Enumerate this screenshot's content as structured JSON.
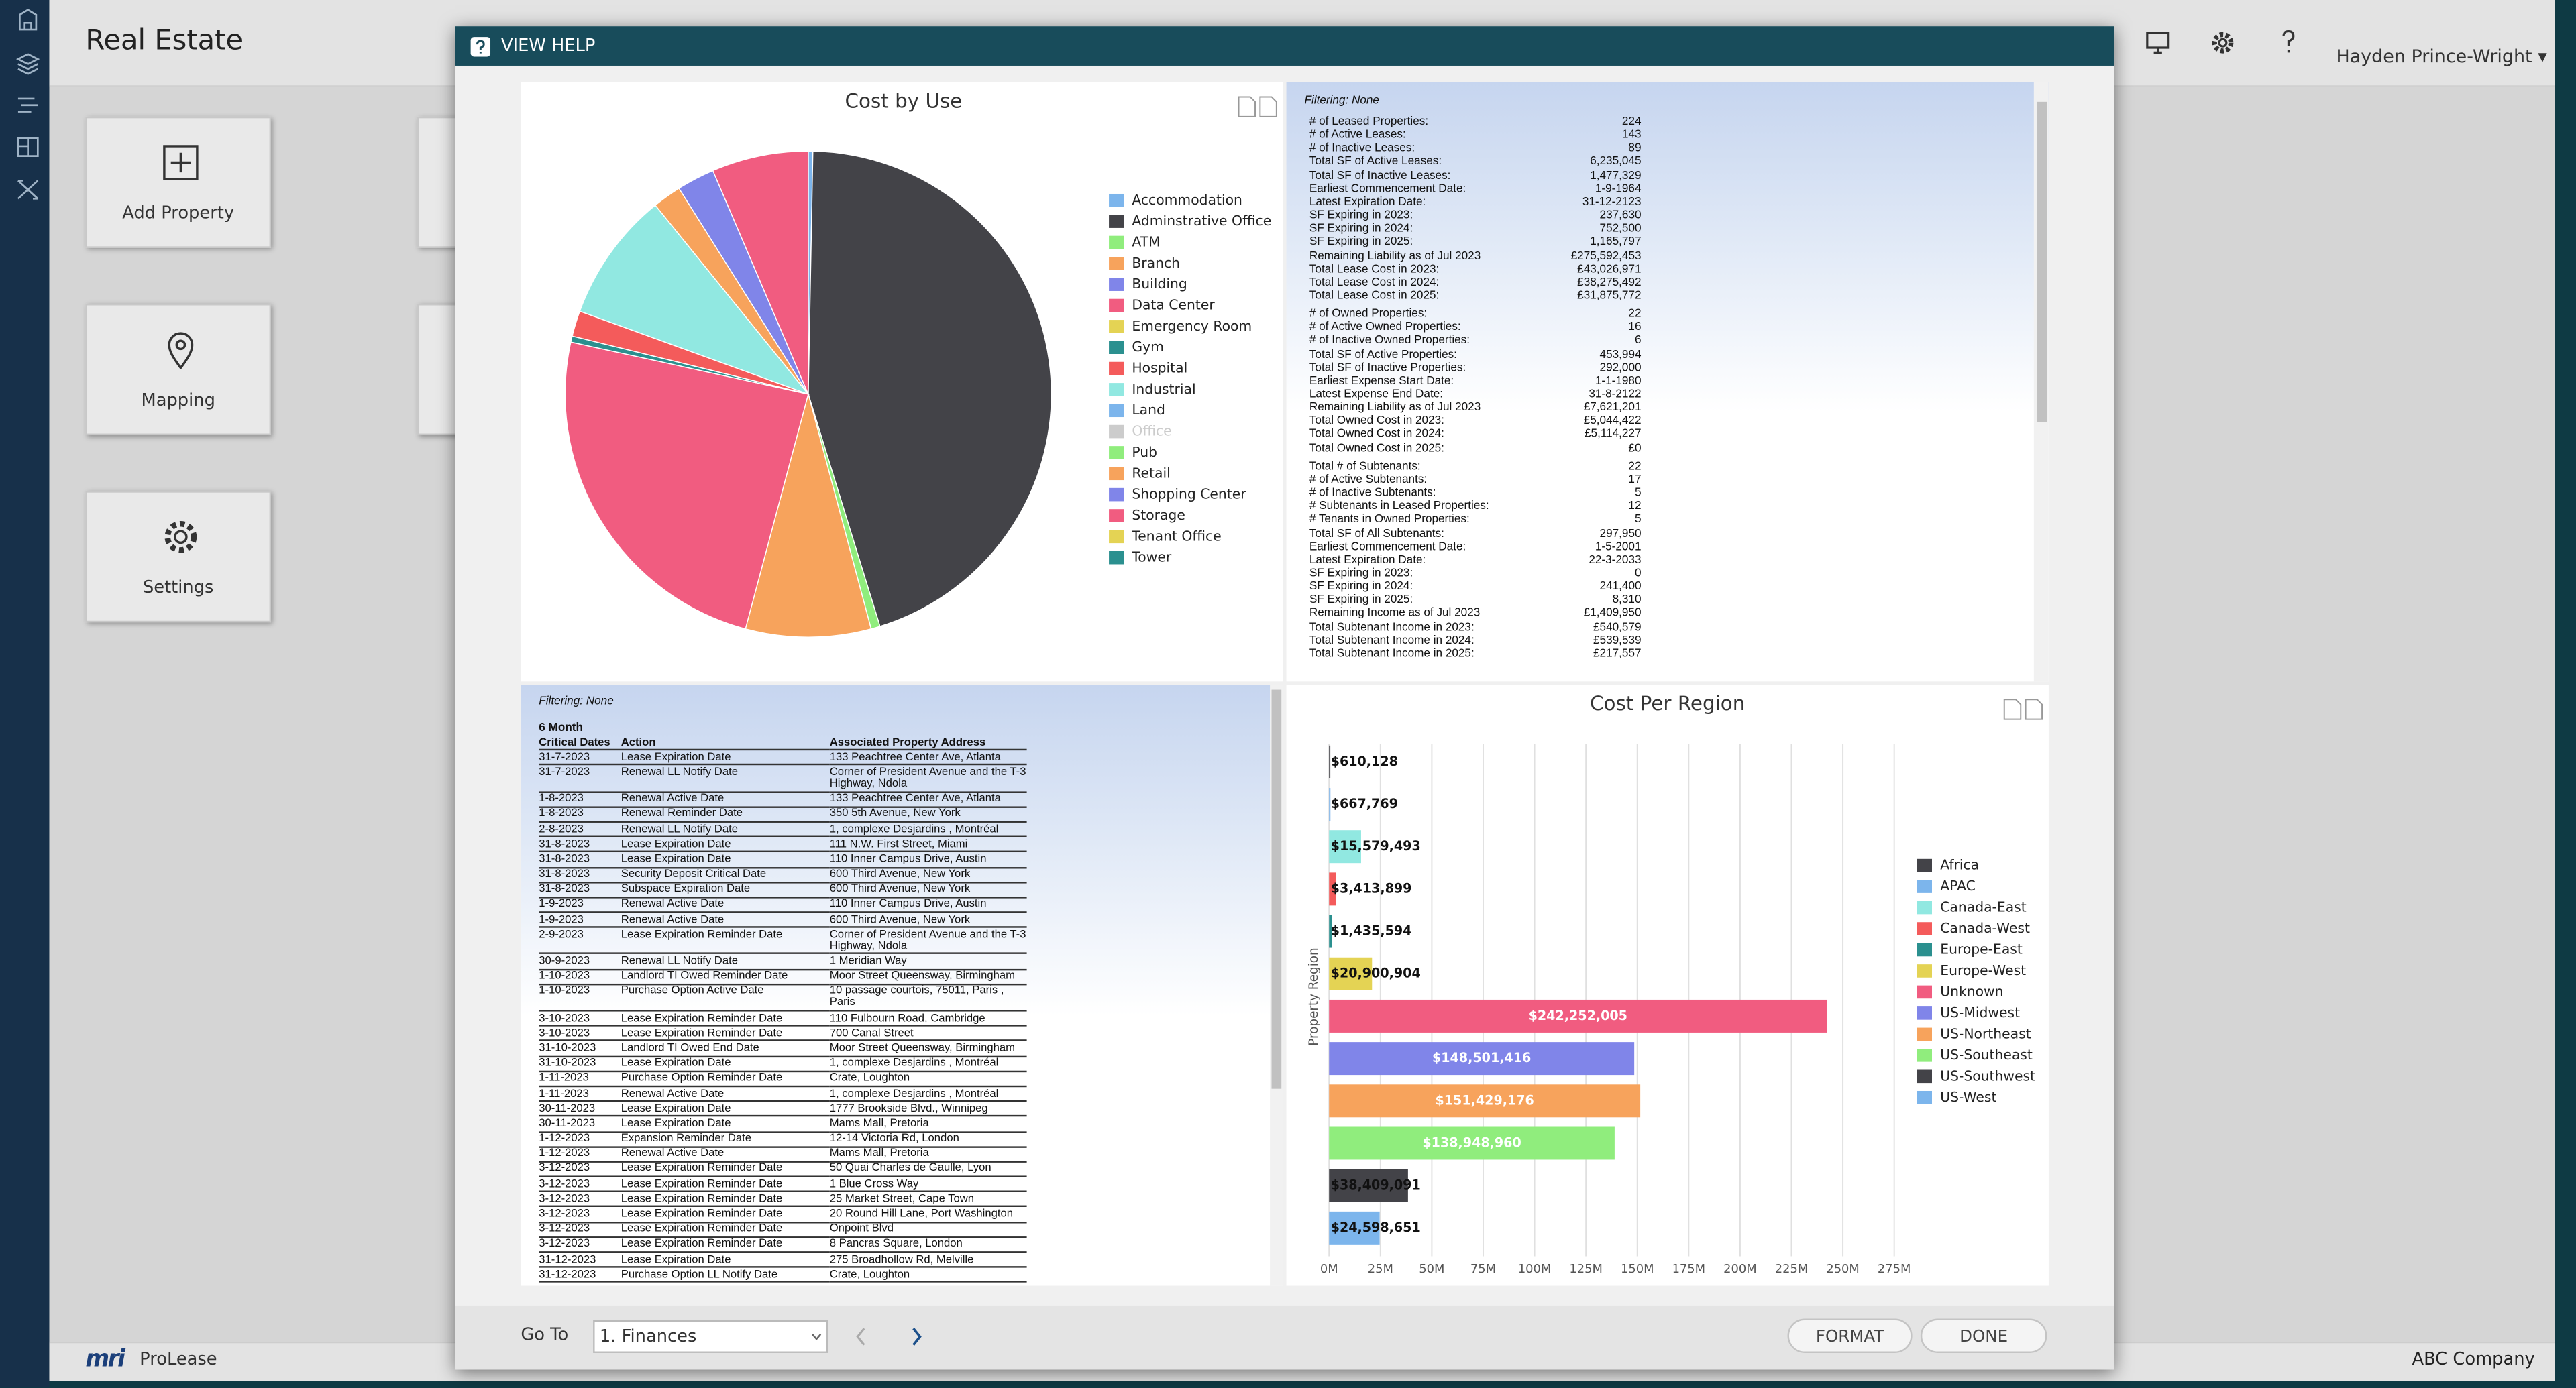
{
  "app": {
    "title": "Real Estate",
    "user": "Hayden Prince-Wright",
    "tiles": [
      "Add Property",
      "Mapping",
      "Settings"
    ],
    "logo": "mri",
    "product": "ProLease",
    "company": "ABC Company"
  },
  "modal": {
    "title": "VIEW HELP",
    "goto_label": "Go To",
    "goto_value": "1. Finances",
    "buttons": [
      "FORMAT",
      "DONE"
    ]
  },
  "summary": {
    "filtering": "Filtering: None",
    "groups": [
      [
        [
          "# of Leased Properties:",
          "224"
        ],
        [
          "# of Active Leases:",
          "143"
        ],
        [
          "# of Inactive Leases:",
          "89"
        ],
        [
          "Total SF of Active Leases:",
          "6,235,045"
        ],
        [
          "Total SF of Inactive Leases:",
          "1,477,329"
        ],
        [
          "Earliest Commencement Date:",
          "1-9-1964"
        ],
        [
          "Latest Expiration Date:",
          "31-12-2123"
        ],
        [
          "SF Expiring in 2023:",
          "237,630"
        ],
        [
          "SF Expiring in 2024:",
          "752,500"
        ],
        [
          "SF Expiring in 2025:",
          "1,165,797"
        ],
        [
          "Remaining Liability as of Jul 2023",
          "£275,592,453"
        ],
        [
          "Total Lease Cost in 2023:",
          "£43,026,971"
        ],
        [
          "Total Lease Cost in 2024:",
          "£38,275,492"
        ],
        [
          "Total Lease Cost in 2025:",
          "£31,875,772"
        ]
      ],
      [
        [
          "# of Owned Properties:",
          "22"
        ],
        [
          "# of Active Owned Properties:",
          "16"
        ],
        [
          "# of Inactive Owned Properties:",
          "6"
        ],
        [
          "Total SF of Active Properties:",
          "453,994"
        ],
        [
          "Total SF of Inactive Properties:",
          "292,000"
        ],
        [
          "Earliest Expense Start Date:",
          "1-1-1980"
        ],
        [
          "Latest Expense End Date:",
          "31-8-2122"
        ],
        [
          "Remaining Liability as of Jul 2023",
          "£7,621,201"
        ],
        [
          "Total Owned Cost in 2023:",
          "£5,044,422"
        ],
        [
          "Total Owned Cost in 2024:",
          "£5,114,227"
        ],
        [
          "Total Owned Cost in 2025:",
          "£0"
        ]
      ],
      [
        [
          "Total # of Subtenants:",
          "22"
        ],
        [
          "# of Active Subtenants:",
          "17"
        ],
        [
          "# of Inactive Subtenants:",
          "5"
        ],
        [
          "# Subtenants in Leased Properties:",
          "12"
        ],
        [
          "# Tenants in Owned Properties:",
          "5"
        ],
        [
          "Total SF of All Subtenants:",
          "297,950"
        ],
        [
          "Earliest Commencement Date:",
          "1-5-2001"
        ],
        [
          "Latest Expiration Date:",
          "22-3-2033"
        ],
        [
          "SF Expiring in 2023:",
          "0"
        ],
        [
          "SF Expiring in 2024:",
          "241,400"
        ],
        [
          "SF Expiring in 2025:",
          "8,310"
        ],
        [
          "Remaining Income as of Jul 2023",
          "£1,409,950"
        ],
        [
          "Total Subtenant Income in 2023:",
          "£540,579"
        ],
        [
          "Total Subtenant Income in 2024:",
          "£539,539"
        ],
        [
          "Total Subtenant Income in 2025:",
          "£217,557"
        ]
      ]
    ]
  },
  "critical_dates": {
    "filtering": "Filtering: None",
    "caption": "6 Month",
    "columns": [
      "Critical Dates",
      "Action",
      "Associated Property Address"
    ],
    "rows": [
      [
        "31-7-2023",
        "Lease Expiration Date",
        "133 Peachtree Center Ave, Atlanta"
      ],
      [
        "31-7-2023",
        "Renewal LL Notify Date",
        "Corner of President Avenue and the T-3 Highway, Ndola"
      ],
      [
        "1-8-2023",
        "Renewal Active Date",
        "133 Peachtree Center Ave, Atlanta"
      ],
      [
        "1-8-2023",
        "Renewal Reminder Date",
        "350 5th Avenue, New York"
      ],
      [
        "2-8-2023",
        "Renewal LL Notify Date",
        "1, complexe Desjardins , Montréal"
      ],
      [
        "31-8-2023",
        "Lease Expiration Date",
        "111 N.W. First Street, Miami"
      ],
      [
        "31-8-2023",
        "Lease Expiration Date",
        "110 Inner Campus Drive, Austin"
      ],
      [
        "31-8-2023",
        "Security Deposit Critical Date",
        "600 Third Avenue, New York"
      ],
      [
        "31-8-2023",
        "Subspace Expiration Date",
        "600 Third Avenue, New York"
      ],
      [
        "1-9-2023",
        "Renewal Active Date",
        "110 Inner Campus Drive, Austin"
      ],
      [
        "1-9-2023",
        "Renewal Active Date",
        "600 Third Avenue, New York"
      ],
      [
        "2-9-2023",
        "Lease Expiration Reminder Date",
        "Corner of President Avenue and the T-3 Highway, Ndola"
      ],
      [
        "30-9-2023",
        "Renewal LL Notify Date",
        "1 Meridian Way"
      ],
      [
        "1-10-2023",
        "Landlord TI Owed Reminder Date",
        "Moor Street Queensway, Birmingham"
      ],
      [
        "1-10-2023",
        "Purchase Option Active Date",
        "10 passage courtois, 75011, Paris , Paris"
      ],
      [
        "3-10-2023",
        "Lease Expiration Reminder Date",
        "110 Fulbourn Road, Cambridge"
      ],
      [
        "3-10-2023",
        "Lease Expiration Reminder Date",
        "700 Canal Street"
      ],
      [
        "31-10-2023",
        "Landlord TI Owed End Date",
        "Moor Street Queensway, Birmingham"
      ],
      [
        "31-10-2023",
        "Lease Expiration Date",
        "1, complexe Desjardins , Montréal"
      ],
      [
        "1-11-2023",
        "Purchase Option Reminder Date",
        "Crate, Loughton"
      ],
      [
        "1-11-2023",
        "Renewal Active Date",
        "1, complexe Desjardins , Montréal"
      ],
      [
        "30-11-2023",
        "Lease Expiration Date",
        "1777 Brookside Blvd., Winnipeg"
      ],
      [
        "30-11-2023",
        "Lease Expiration Date",
        "Mams Mall, Pretoria"
      ],
      [
        "1-12-2023",
        "Expansion Reminder Date",
        "12-14 Victoria Rd, London"
      ],
      [
        "1-12-2023",
        "Renewal Active Date",
        "Mams Mall, Pretoria"
      ],
      [
        "3-12-2023",
        "Lease Expiration Reminder Date",
        "50 Quai Charles de Gaulle, Lyon"
      ],
      [
        "3-12-2023",
        "Lease Expiration Reminder Date",
        "1 Blue Cross Way"
      ],
      [
        "3-12-2023",
        "Lease Expiration Reminder Date",
        "25 Market Street, Cape Town"
      ],
      [
        "3-12-2023",
        "Lease Expiration Reminder Date",
        "20 Round Hill Lane, Port Washington"
      ],
      [
        "3-12-2023",
        "Lease Expiration Reminder Date",
        "Onpoint Blvd"
      ],
      [
        "3-12-2023",
        "Lease Expiration Reminder Date",
        "8 Pancras Square, London"
      ],
      [
        "31-12-2023",
        "Lease Expiration Date",
        "275 Broadhollow Rd, Melville"
      ],
      [
        "31-12-2023",
        "Purchase Option LL Notify Date",
        "Crate, Loughton"
      ]
    ]
  },
  "chart_data": [
    {
      "type": "pie",
      "title": "Cost by Use",
      "categories": [
        "Accommodation",
        "Adminstrative Office",
        "ATM",
        "Branch",
        "Building",
        "Data Center",
        "Emergency Room",
        "Gym",
        "Hospital",
        "Industrial",
        "Land",
        "Office",
        "Pub",
        "Retail",
        "Shopping Center",
        "Storage",
        "Tenant Office",
        "Tower"
      ],
      "values": [
        0.3,
        44.8,
        0.6,
        8.3,
        0,
        24.2,
        0,
        0.4,
        1.7,
        8.6,
        0,
        null,
        0,
        1.9,
        2.5,
        6.4,
        0,
        0
      ],
      "colors": [
        "#7cb5ec",
        "#434348",
        "#90ed7d",
        "#f7a35c",
        "#8085e9",
        "#f15c80",
        "#e4d354",
        "#2b908f",
        "#f45b5b",
        "#91e8e1",
        "#7cb5ec",
        "#434348",
        "#90ed7d",
        "#f7a35c",
        "#8085e9",
        "#f15c80",
        "#e4d354",
        "#2b908f"
      ],
      "legend": "right"
    },
    {
      "type": "bar",
      "orientation": "horizontal",
      "title": "Cost Per Region",
      "ylabel": "Property Region",
      "series": [
        {
          "name": "Africa",
          "color": "#434348",
          "values": [
            610128
          ],
          "value_labels": [
            "$610,128"
          ]
        },
        {
          "name": "APAC",
          "color": "#7cb5ec",
          "values": [
            667769
          ],
          "value_labels": [
            "$667,769"
          ]
        },
        {
          "name": "Canada-East",
          "color": "#91e8e1",
          "values": [
            15579493
          ],
          "value_labels": [
            "$15,579,493"
          ]
        },
        {
          "name": "Canada-West",
          "color": "#f45b5b",
          "values": [
            3413899
          ],
          "value_labels": [
            "$3,413,899"
          ]
        },
        {
          "name": "Europe-East",
          "color": "#2b908f",
          "values": [
            1435594
          ],
          "value_labels": [
            "$1,435,594"
          ]
        },
        {
          "name": "Europe-West",
          "color": "#e4d354",
          "values": [
            20900904
          ],
          "value_labels": [
            "$20,900,904"
          ]
        },
        {
          "name": "Unknown",
          "color": "#f15c80",
          "values": [
            242252005
          ],
          "value_labels": [
            "$242,252,005"
          ]
        },
        {
          "name": "US-Midwest",
          "color": "#8085e9",
          "values": [
            148501416
          ],
          "value_labels": [
            "$148,501,416"
          ]
        },
        {
          "name": "US-Northeast",
          "color": "#f7a35c",
          "values": [
            151429176
          ],
          "value_labels": [
            "$151,429,176"
          ]
        },
        {
          "name": "US-Southeast",
          "color": "#90ed7d",
          "values": [
            138948960
          ],
          "value_labels": [
            "$138,948,960"
          ]
        },
        {
          "name": "US-Southwest",
          "color": "#434348",
          "values": [
            38409091
          ],
          "value_labels": [
            "$38,409,091"
          ]
        },
        {
          "name": "US-West",
          "color": "#7cb5ec",
          "values": [
            24598651
          ],
          "value_labels": [
            "$24,598,651"
          ]
        }
      ],
      "xlim": [
        0,
        275000000
      ],
      "xticks": [
        {
          "value": 0,
          "label": "0M"
        },
        {
          "value": 25000000,
          "label": "25M"
        },
        {
          "value": 50000000,
          "label": "50M"
        },
        {
          "value": 75000000,
          "label": "75M"
        },
        {
          "value": 100000000,
          "label": "100M"
        },
        {
          "value": 125000000,
          "label": "125M"
        },
        {
          "value": 150000000,
          "label": "150M"
        },
        {
          "value": 175000000,
          "label": "175M"
        },
        {
          "value": 200000000,
          "label": "200M"
        },
        {
          "value": 225000000,
          "label": "225M"
        },
        {
          "value": 250000000,
          "label": "250M"
        },
        {
          "value": 275000000,
          "label": "275M"
        }
      ],
      "grid": true,
      "legend": "right"
    }
  ]
}
